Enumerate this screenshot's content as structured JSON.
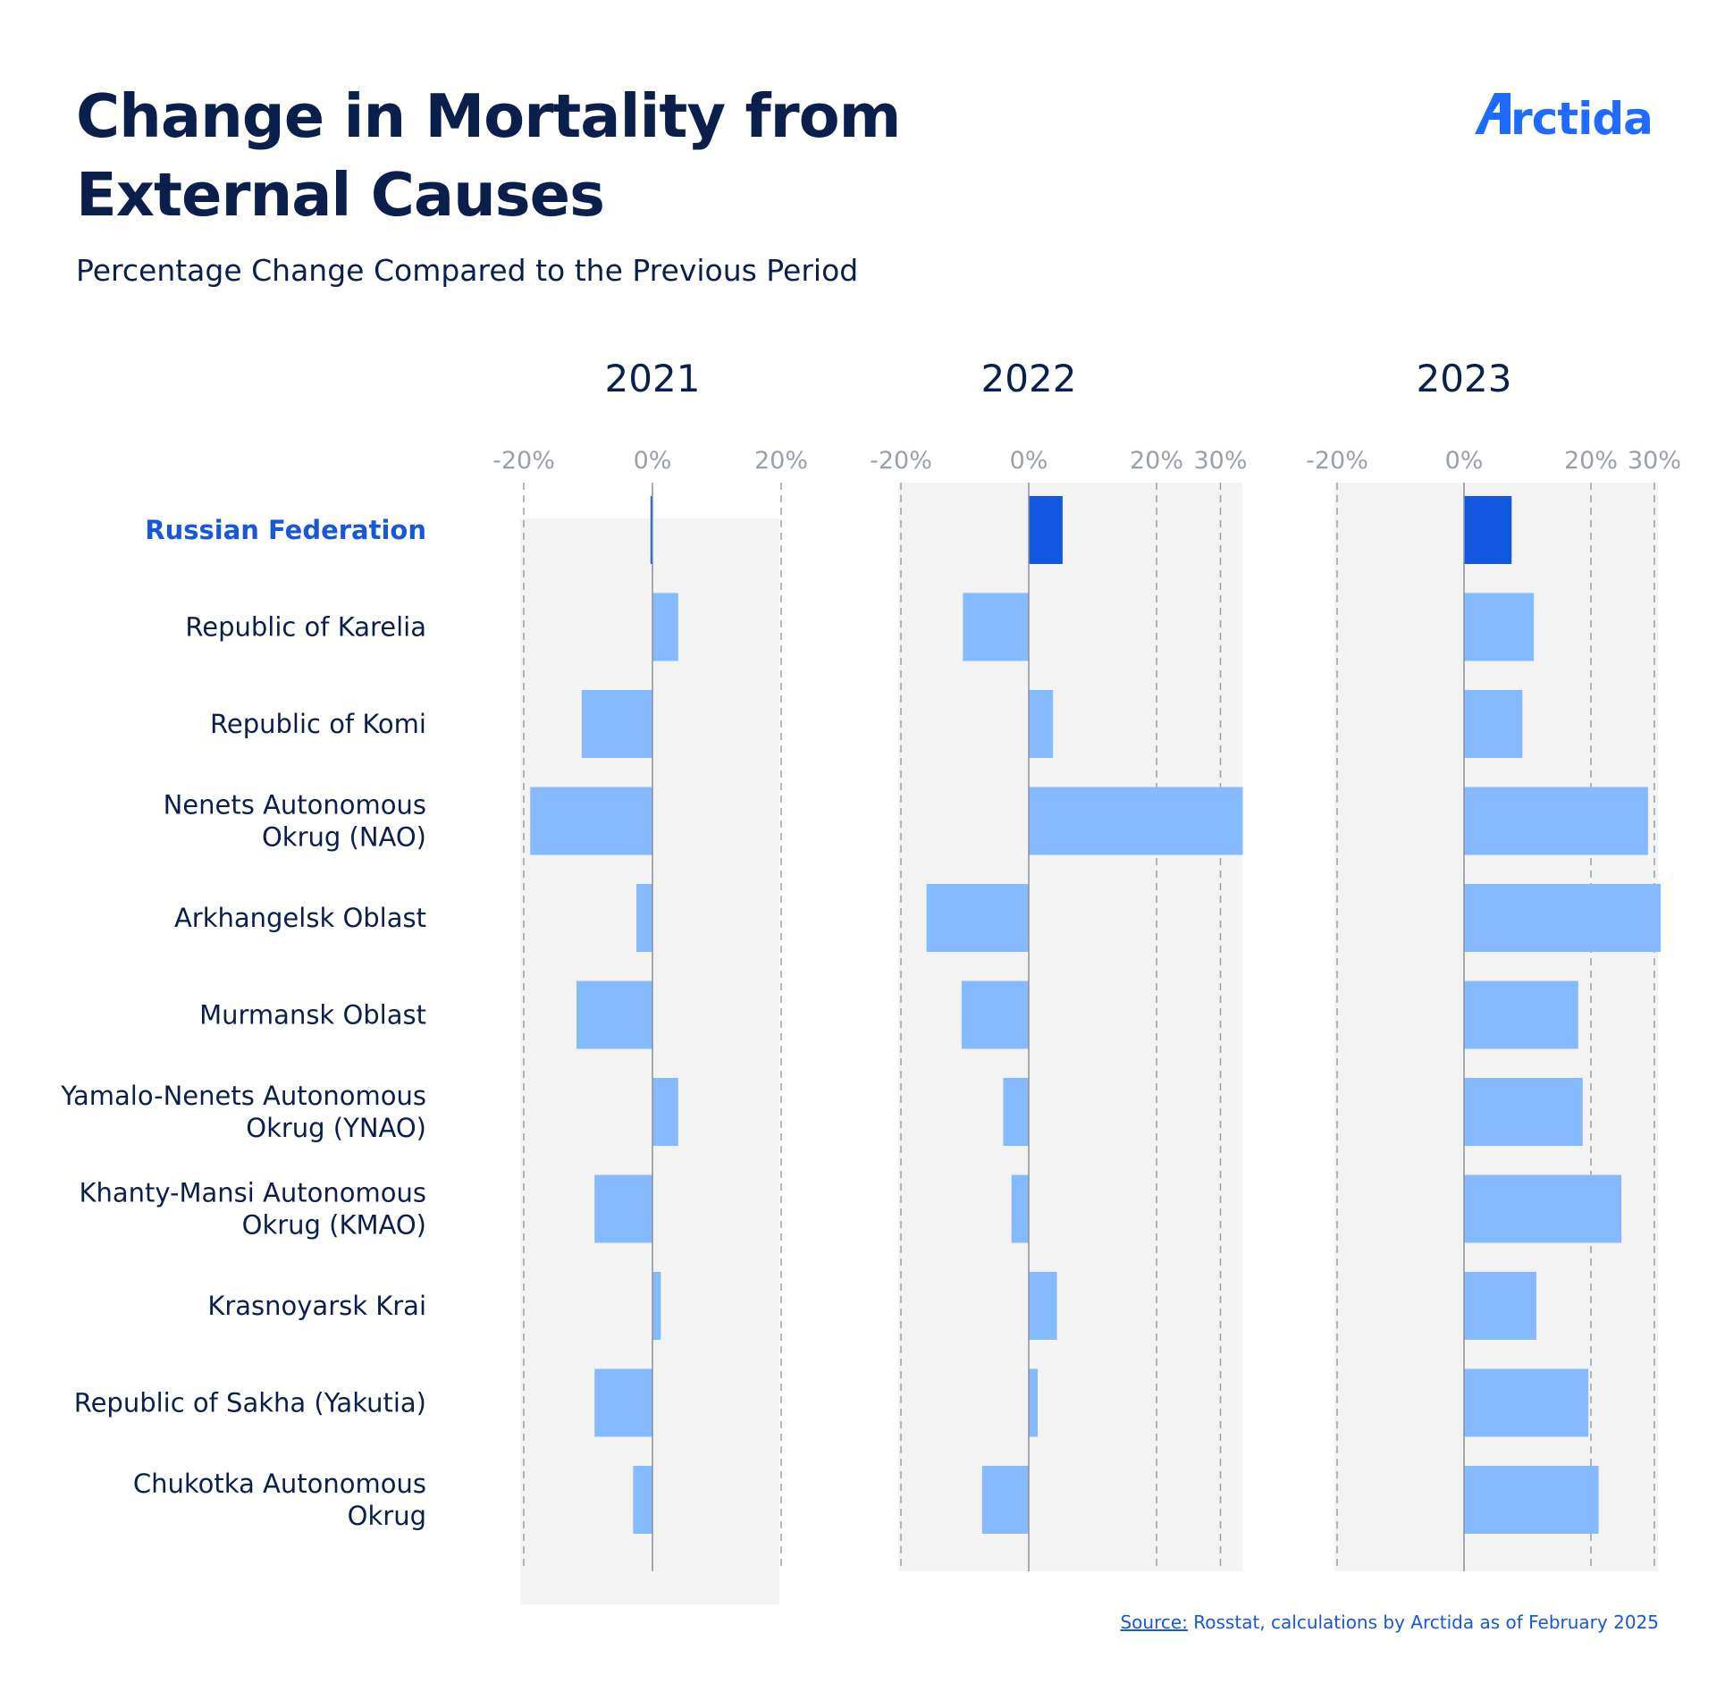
{
  "title": "Change in Mortality from External Causes",
  "subtitle": "Percentage Change Compared to the Previous Period",
  "logo": {
    "text": "rctida",
    "color": "#1f6bff"
  },
  "source": {
    "link_label": "Source:",
    "text": " Rosstat, calculations by Arctida as of February 2025"
  },
  "colors": {
    "highlight": "#1157e0",
    "bar": "#86baff",
    "panel_bg": "#f3f3f3",
    "text": "#0b1f4d",
    "highlight_text": "#1757d9",
    "grid": "#9aa0aa"
  },
  "chart_data": {
    "type": "bar",
    "orientation": "horizontal",
    "categories": [
      "Russian Federation",
      "Republic of Karelia",
      "Republic of Komi",
      "Nenets Autonomous Okrug (NAO)",
      "Arkhangelsk Oblast",
      "Murmansk Oblast",
      "Yamalo-Nenets Autonomous Okrug (YNAO)",
      "Khanty-Mansi Autonomous Okrug (KMAO)",
      "Krasnoyarsk Krai",
      "Republic of Sakha (Yakutia)",
      "Chukotka Autonomous Okrug"
    ],
    "category_lines": [
      [
        "Russian Federation"
      ],
      [
        "Republic of Karelia"
      ],
      [
        "Republic of Komi"
      ],
      [
        "Nenets Autonomous",
        "Okrug (NAO)"
      ],
      [
        "Arkhangelsk Oblast"
      ],
      [
        "Murmansk Oblast"
      ],
      [
        "Yamalo-Nenets Autonomous",
        "Okrug (YNAO)"
      ],
      [
        "Khanty-Mansi Autonomous",
        "Okrug (KMAO)"
      ],
      [
        "Krasnoyarsk Krai"
      ],
      [
        "Republic of Sakha (Yakutia)"
      ],
      [
        "Chukotka Autonomous",
        "Okrug"
      ]
    ],
    "highlight_category": "Russian Federation",
    "panels": [
      {
        "name": "2021",
        "xlim": [
          -20,
          20
        ],
        "ticks": [
          -20,
          0,
          20
        ],
        "tick_labels": [
          "-20%",
          "0%",
          "20%"
        ],
        "values": [
          -0.3,
          4,
          -11,
          -19,
          -2.5,
          -11.8,
          4,
          -9,
          1.3,
          -9,
          -3
        ]
      },
      {
        "name": "2022",
        "xlim": [
          -20,
          33.5
        ],
        "ticks": [
          -20,
          0,
          20,
          30
        ],
        "tick_labels": [
          "-20%",
          "0%",
          "20%",
          "30%"
        ],
        "values": [
          5.3,
          -10.3,
          3.8,
          33.5,
          -16,
          -10.5,
          -4,
          -2.7,
          4.4,
          1.4,
          -7.3
        ]
      },
      {
        "name": "2023",
        "xlim": [
          -20,
          30.5
        ],
        "ticks": [
          -20,
          0,
          20,
          30
        ],
        "tick_labels": [
          "-20%",
          "0%",
          "20%",
          "30%"
        ],
        "values": [
          7.5,
          11,
          9.2,
          29,
          31,
          18,
          18.7,
          24.8,
          11.4,
          19.6,
          21.2
        ]
      }
    ]
  }
}
